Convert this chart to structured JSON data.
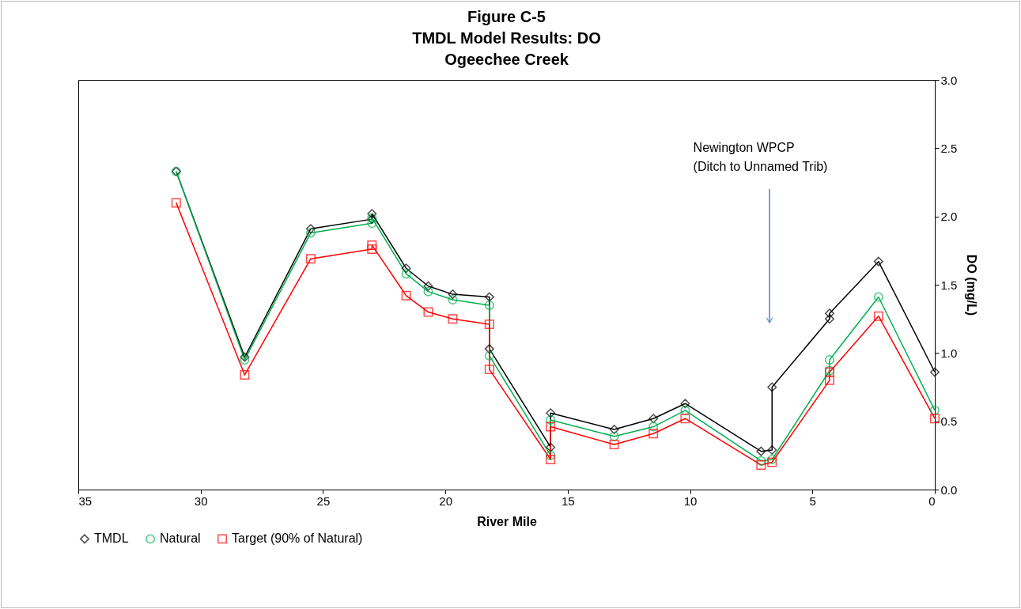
{
  "chart_data": {
    "type": "line",
    "title": "Figure C-5\nTMDL Model Results: DO\nOgeechee Creek",
    "xlabel": "River Mile",
    "ylabel": "DO (mg/L)",
    "xlim": [
      35,
      0
    ],
    "xticks": [
      35,
      30,
      25,
      20,
      15,
      10,
      5,
      0
    ],
    "ylim": [
      0,
      3
    ],
    "yticks": [
      {
        "value": 0,
        "label": "0.0"
      },
      {
        "value": 0.5,
        "label": "0.5"
      },
      {
        "value": 1,
        "label": "1.0"
      },
      {
        "value": 1.5,
        "label": "1.5"
      },
      {
        "value": 2,
        "label": "2.0"
      },
      {
        "value": 2.5,
        "label": "2.5"
      },
      {
        "value": 3,
        "label": "3.0"
      }
    ],
    "grid": false,
    "legend": "bottom",
    "line_style": "solid",
    "annotations": [
      "Newington WPCP\n(Ditch to Unnamed Trib)"
    ],
    "series": [
      {
        "name": "TMDL",
        "color": "#000000",
        "marker": "diamond",
        "x": [
          31.0,
          28.2,
          25.5,
          23.0,
          23.0,
          21.6,
          20.7,
          19.7,
          18.2,
          18.2,
          15.7,
          15.7,
          13.1,
          11.5,
          10.2,
          7.1,
          6.65,
          6.65,
          4.3,
          4.3,
          2.3,
          0.0
        ],
        "values": [
          2.33,
          0.97,
          1.91,
          1.98,
          2.02,
          1.62,
          1.49,
          1.43,
          1.41,
          1.03,
          0.31,
          0.56,
          0.44,
          0.52,
          0.63,
          0.28,
          0.29,
          0.75,
          1.25,
          1.29,
          1.67,
          0.86
        ]
      },
      {
        "name": "Natural",
        "color": "#00b050",
        "marker": "circle",
        "x": [
          31.0,
          28.2,
          25.5,
          23.0,
          23.0,
          21.6,
          20.7,
          19.7,
          18.2,
          18.2,
          15.7,
          15.7,
          13.1,
          11.5,
          10.2,
          7.1,
          6.65,
          4.3,
          4.3,
          2.3,
          0.0
        ],
        "values": [
          2.33,
          0.95,
          1.88,
          1.95,
          1.99,
          1.58,
          1.45,
          1.39,
          1.35,
          0.98,
          0.25,
          0.51,
          0.39,
          0.46,
          0.58,
          0.21,
          0.22,
          0.87,
          0.95,
          1.41,
          0.58
        ]
      },
      {
        "name": "Target (90% of Natural)",
        "color": "#ff0000",
        "marker": "square",
        "x": [
          31.0,
          28.2,
          25.5,
          23.0,
          23.0,
          21.6,
          20.7,
          19.7,
          18.2,
          18.2,
          15.7,
          15.7,
          13.1,
          11.5,
          10.2,
          7.1,
          6.65,
          4.3,
          4.3,
          2.3,
          0.0
        ],
        "values": [
          2.1,
          0.84,
          1.69,
          1.76,
          1.79,
          1.42,
          1.3,
          1.25,
          1.21,
          0.88,
          0.22,
          0.46,
          0.33,
          0.41,
          0.52,
          0.18,
          0.2,
          0.8,
          0.86,
          1.27,
          0.52
        ]
      }
    ]
  }
}
